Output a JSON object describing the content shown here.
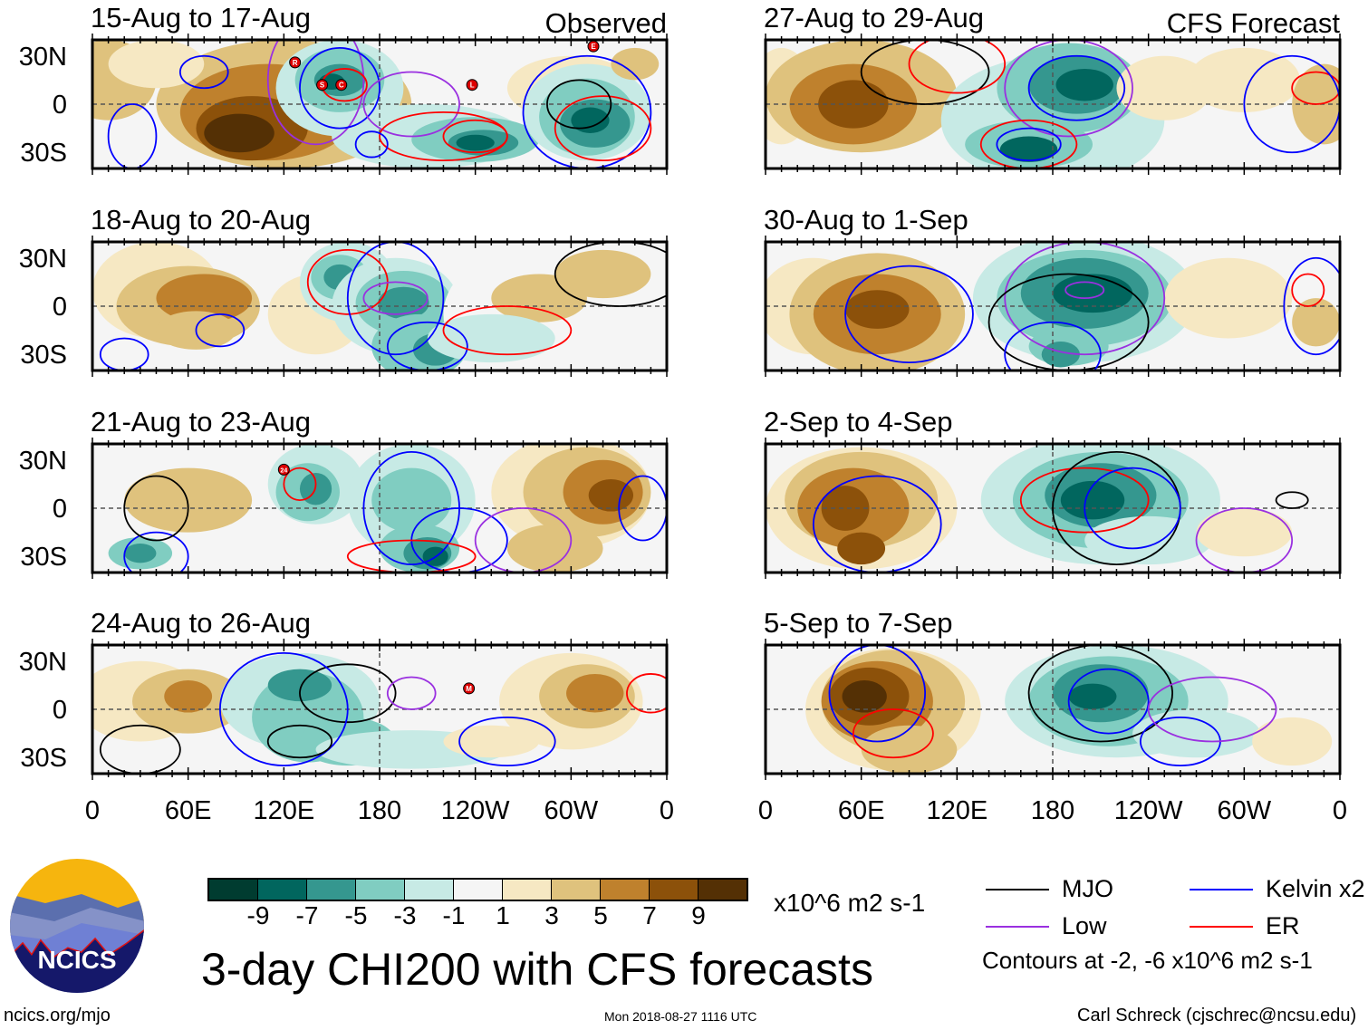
{
  "panels": [
    {
      "title": "15-Aug to 17-Aug",
      "tag": "Observed",
      "storms": [
        "R",
        "S",
        "C",
        "L",
        "E"
      ]
    },
    {
      "title": "27-Aug to 29-Aug",
      "tag": "CFS Forecast",
      "storms": []
    },
    {
      "title": "18-Aug to 20-Aug",
      "tag": "",
      "storms": []
    },
    {
      "title": "30-Aug to 1-Sep",
      "tag": "",
      "storms": []
    },
    {
      "title": "21-Aug to 23-Aug",
      "tag": "",
      "storms": [
        "24"
      ]
    },
    {
      "title": "2-Sep to 4-Sep",
      "tag": "",
      "storms": []
    },
    {
      "title": "24-Aug to 26-Aug",
      "tag": "",
      "storms": [
        "M"
      ]
    },
    {
      "title": "5-Sep to 7-Sep",
      "tag": "",
      "storms": []
    }
  ],
  "lat_labels": [
    "30N",
    "0",
    "30S"
  ],
  "lon_labels": [
    "0",
    "60E",
    "120E",
    "180",
    "120W",
    "60W",
    "0"
  ],
  "colorbar": {
    "colors": [
      "#003c30",
      "#01665e",
      "#35978f",
      "#80cdc1",
      "#c7eae5",
      "#f5f5f5",
      "#f6e8c3",
      "#dfc27d",
      "#bf812d",
      "#8c510a",
      "#543005"
    ],
    "ticks": [
      "-9",
      "-7",
      "-5",
      "-3",
      "-1",
      "1",
      "3",
      "5",
      "7",
      "9"
    ],
    "units": "x10^6 m2 s-1"
  },
  "legend": {
    "items": [
      {
        "label": "MJO",
        "color": "#000000"
      },
      {
        "label": "Kelvin x2",
        "color": "#0000ff"
      },
      {
        "label": "Low",
        "color": "#9a30e0"
      },
      {
        "label": "ER",
        "color": "#ff0000"
      }
    ],
    "contours_note": "Contours at -2, -6 x10^6 m2 s-1"
  },
  "title": "3-day CHI200 with CFS forecasts",
  "logo": {
    "text": "NCICS"
  },
  "footer": {
    "url": "ncics.org/mjo",
    "timestamp": "Mon 2018-08-27 1116 UTC",
    "author": "Carl Schreck (cjschrec@ncsu.edu)"
  }
}
